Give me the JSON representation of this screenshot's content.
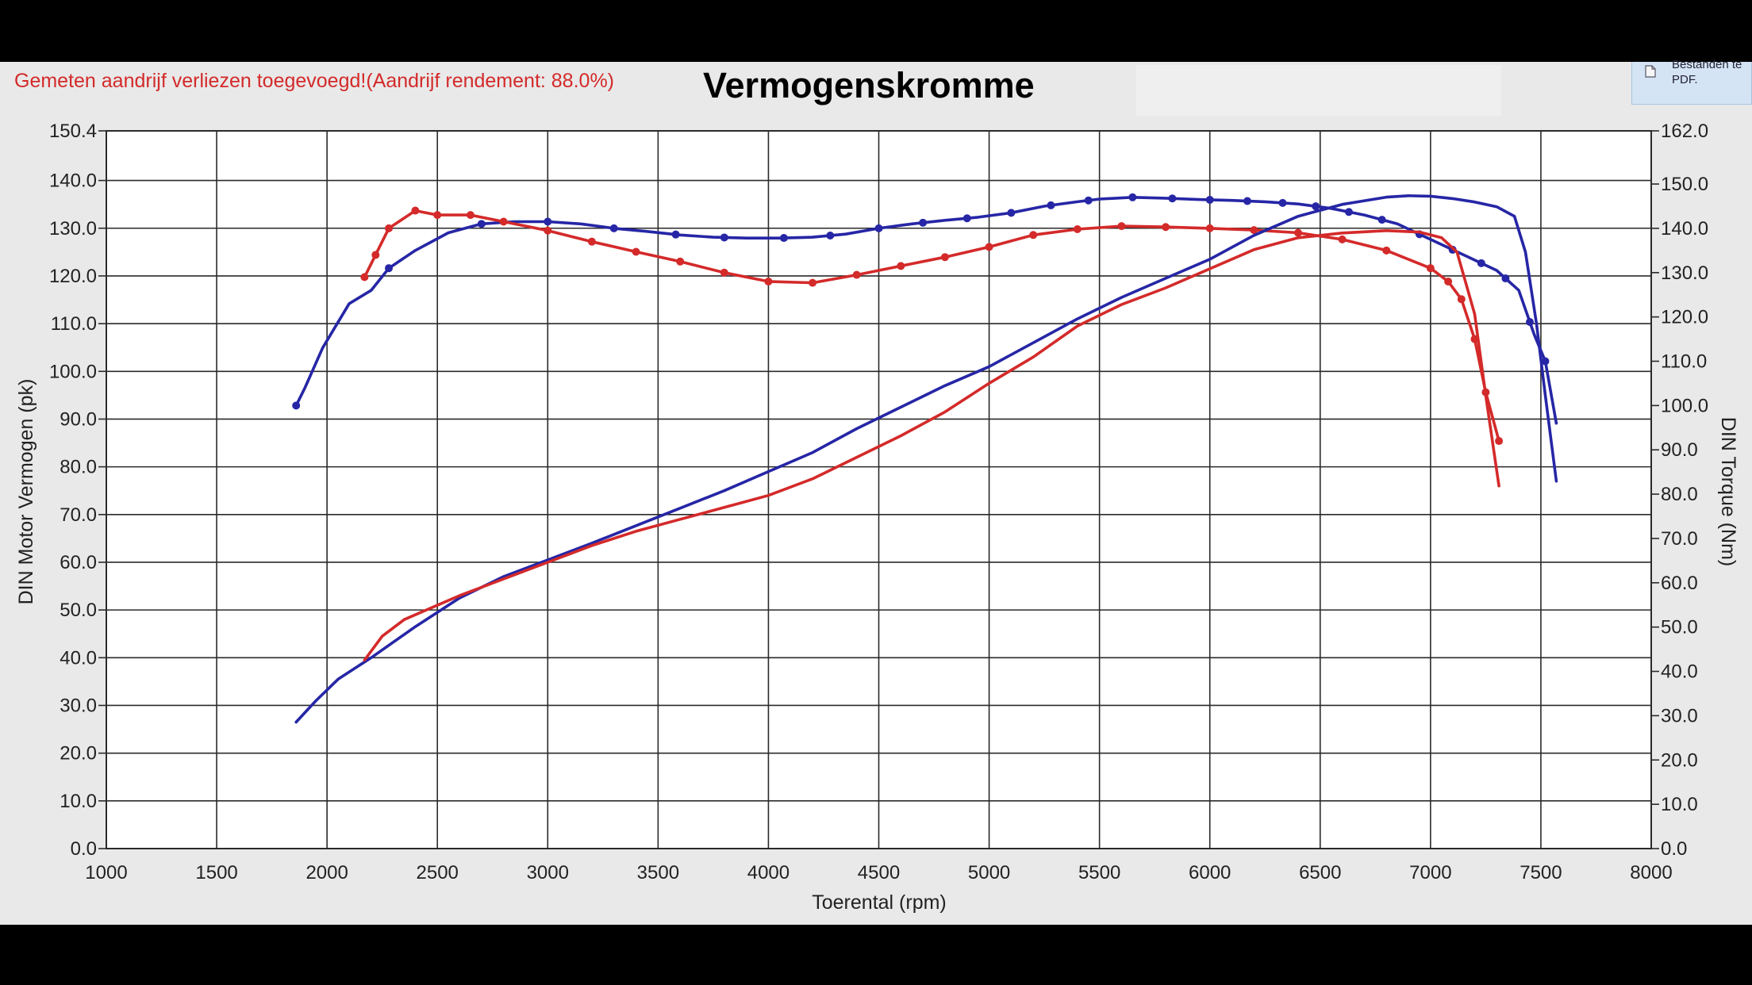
{
  "header": {
    "note": "Gemeten aandrijf verliezen toegevoegd!(Aandrijf rendement: 88.0%)",
    "note_color": "#d42a2a",
    "pdf_button_label": "Bestanden te PDF.",
    "pdf_icon": "file-icon"
  },
  "chart_data": {
    "type": "line",
    "title": "Vermogenskromme",
    "xlabel": "Toerental (rpm)",
    "ylabel": "DIN Motor Vermogen (pk)",
    "y2label": "DIN Torque (Nm)",
    "xlim": [
      1000,
      8000
    ],
    "ylim": [
      0,
      150.4
    ],
    "y2lim": [
      0,
      162
    ],
    "grid": true,
    "legend": "none",
    "x_ticks": [
      "1000",
      "1500",
      "2000",
      "2500",
      "3000",
      "3500",
      "4000",
      "4500",
      "5000",
      "5500",
      "6000",
      "6500",
      "7000",
      "7500",
      "8000"
    ],
    "y_ticks": [
      "150.4",
      "140.0",
      "130.0",
      "120.0",
      "110.0",
      "100.0",
      "90.0",
      "80.0",
      "70.0",
      "60.0",
      "50.0",
      "40.0",
      "30.0",
      "20.0",
      "10.0",
      "0.0"
    ],
    "y2_ticks": [
      "162.0",
      "150.0",
      "140.0",
      "130.0",
      "120.0",
      "110.0",
      "100.0",
      "90.0",
      "80.0",
      "70.0",
      "60.0",
      "50.0",
      "40.0",
      "30.0",
      "20.0",
      "10.0",
      "0.0"
    ],
    "series": [
      {
        "color": "#2626a6",
        "axis": "right",
        "markers": true,
        "x": [
          1860,
          1900,
          1980,
          2100,
          2200,
          2280,
          2400,
          2550,
          2700,
          2850,
          3000,
          3150,
          3300,
          3450,
          3600,
          3750,
          3900,
          4050,
          4200,
          4350,
          4500,
          4650,
          4800,
          4950,
          5100,
          5250,
          5400,
          5500,
          5650,
          5800,
          5950,
          6100,
          6250,
          6400,
          6550,
          6700,
          6850,
          7000,
          7150,
          7300,
          7400,
          7470,
          7520,
          7570
        ],
        "y": [
          100,
          104,
          113,
          123,
          126,
          131,
          135,
          139,
          141,
          141.5,
          141.5,
          141,
          140,
          139.3,
          138.5,
          138,
          137.8,
          137.8,
          138,
          138.7,
          140,
          141,
          141.8,
          142.5,
          143.5,
          145,
          146,
          146.6,
          147,
          146.8,
          146.5,
          146.3,
          146,
          145.5,
          144.5,
          143,
          141,
          137.5,
          134,
          130.5,
          126,
          116,
          110,
          96
        ],
        "marker_x": [
          1860,
          2280,
          2700,
          3000,
          3300,
          3580,
          3800,
          4070,
          4280,
          4500,
          4700,
          4900,
          5100,
          5280,
          5450,
          5650,
          5830,
          6000,
          6170,
          6330,
          6480,
          6630,
          6780,
          6950,
          7100,
          7230,
          7340,
          7450,
          7520
        ]
      },
      {
        "color": "#d42a2a",
        "axis": "right",
        "markers": true,
        "x": [
          2170,
          2220,
          2280,
          2400,
          2500,
          2650,
          2800,
          3000,
          3200,
          3400,
          3600,
          3800,
          4000,
          4200,
          4400,
          4600,
          4800,
          5000,
          5200,
          5400,
          5600,
          5800,
          6000,
          6200,
          6400,
          6600,
          6800,
          7000,
          7080,
          7140,
          7200,
          7250,
          7310
        ],
        "y": [
          129,
          134,
          140,
          144,
          143,
          143,
          141.5,
          139.5,
          137,
          134.7,
          132.5,
          130,
          128,
          127.7,
          129.5,
          131.5,
          133.5,
          135.8,
          138.5,
          139.8,
          140.5,
          140.3,
          140,
          139.6,
          139,
          137.5,
          135,
          131,
          128,
          124,
          115,
          103,
          92
        ]
      },
      {
        "color": "#2626a6",
        "axis": "left",
        "markers": false,
        "x": [
          1860,
          1950,
          2050,
          2200,
          2400,
          2600,
          2800,
          3000,
          3200,
          3500,
          3800,
          4000,
          4200,
          4400,
          4600,
          4800,
          5000,
          5200,
          5400,
          5600,
          5800,
          6000,
          6200,
          6400,
          6600,
          6800,
          6900,
          7000,
          7100,
          7200,
          7300,
          7380,
          7430,
          7480,
          7520,
          7570
        ],
        "y": [
          26.5,
          31,
          35.5,
          40,
          46.5,
          52.5,
          57,
          60.5,
          64,
          69.5,
          75,
          79,
          83,
          88,
          92.5,
          97,
          101,
          106,
          111,
          115.5,
          119.5,
          123.5,
          128.5,
          132.5,
          135,
          136.5,
          136.8,
          136.7,
          136.2,
          135.5,
          134.5,
          132.5,
          125,
          110,
          95,
          77
        ]
      },
      {
        "color": "#d42a2a",
        "axis": "left",
        "markers": false,
        "x": [
          2170,
          2250,
          2350,
          2450,
          2600,
          2800,
          3000,
          3200,
          3400,
          3600,
          3800,
          4000,
          4200,
          4400,
          4600,
          4800,
          5000,
          5200,
          5400,
          5600,
          5800,
          6000,
          6200,
          6400,
          6600,
          6800,
          6950,
          7050,
          7120,
          7200,
          7250,
          7310
        ],
        "y": [
          39.5,
          44.5,
          48,
          50,
          53,
          56.5,
          60,
          63.5,
          66.5,
          69,
          71.5,
          74,
          77.5,
          82,
          86.5,
          91.5,
          97.5,
          103,
          109.5,
          114,
          117.5,
          121.5,
          125.5,
          128,
          129,
          129.5,
          129.2,
          128,
          125,
          112,
          95,
          76
        ]
      }
    ]
  }
}
